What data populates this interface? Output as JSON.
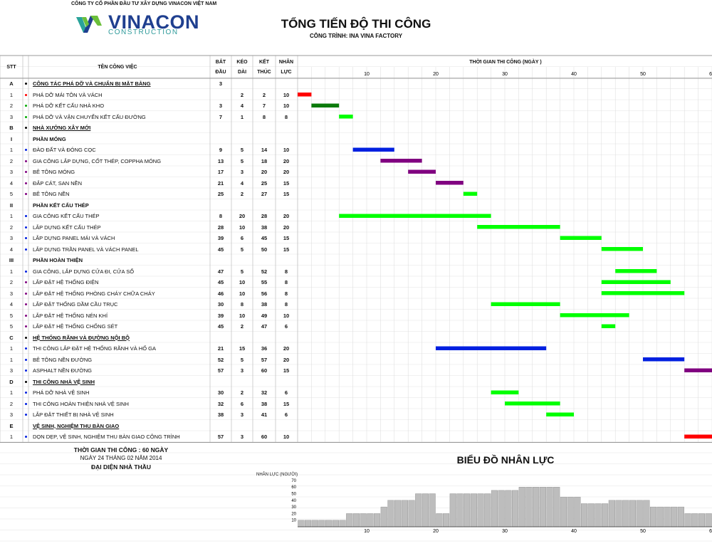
{
  "company": "CÔNG TY CỔ PHẦN ĐẦU TƯ XÂY DỰNG VINACON VIỆT NAM",
  "logo": {
    "name": "VINACON",
    "sub": "CONSTRUCTION"
  },
  "title": "TỔNG TIẾN ĐỘ THI CÔNG",
  "subtitle": "CÔNG TRÌNH: INA VINA FACTORY",
  "headers": {
    "stt": "STT",
    "task": "TÊN CÔNG VIỆC",
    "start": [
      "BẮT",
      "ĐẦU"
    ],
    "duration": [
      "KÉO",
      "DÀI"
    ],
    "end": [
      "KẾT",
      "THÚC"
    ],
    "labor": [
      "NHÂN",
      "LỰC"
    ],
    "timeline": "THỜI GIAN THI CÔNG (NGÀY )"
  },
  "colors": {
    "red": "#ff0000",
    "green": "#00ff00",
    "darkgreen": "#0a7a0a",
    "blue": "#0020e0",
    "purple": "#800080",
    "grid": "#d0d0d0"
  },
  "rows": [
    {
      "stt": "A",
      "kind": "section",
      "bullet": "#000000",
      "name": "CÔNG TÁC PHÁ DỠ VÀ CHUẨN BỊ MẶT BẰNG",
      "start": "3",
      "dur": "",
      "end": "",
      "labor": ""
    },
    {
      "stt": "1",
      "kind": "task",
      "bullet": "#ff0000",
      "name": "PHÁ DỠ MÁI TÔN VÀ VÁCH",
      "start": "",
      "dur": "2",
      "end": "2",
      "labor": "10",
      "bar": {
        "s": 0,
        "e": 2,
        "color": "red"
      }
    },
    {
      "stt": "2",
      "kind": "task",
      "bullet": "#00aa00",
      "name": "PHÁ DỠ KẾT CẤU NHÀ KHO",
      "start": "3",
      "dur": "4",
      "end": "7",
      "labor": "10",
      "bar": {
        "s": 2,
        "e": 6,
        "color": "darkgreen"
      }
    },
    {
      "stt": "3",
      "kind": "task",
      "bullet": "#00aa00",
      "name": "PHÁ DỠ VÀ VẬN CHUYỂN KẾT CẤU ĐƯỜNG",
      "start": "7",
      "dur": "1",
      "end": "8",
      "labor": "8",
      "bar": {
        "s": 6,
        "e": 8,
        "color": "green"
      }
    },
    {
      "stt": "B",
      "kind": "section",
      "bullet": "#000000",
      "name": "NHÀ XƯỞNG XÂY MỚI",
      "start": "",
      "dur": "",
      "end": "",
      "labor": ""
    },
    {
      "stt": "I",
      "kind": "sub",
      "bullet": "",
      "name": "PHẦN MÓNG",
      "start": "",
      "dur": "",
      "end": "",
      "labor": ""
    },
    {
      "stt": "1",
      "kind": "task",
      "bullet": "#0020e0",
      "name": "ĐÀO ĐẤT VÀ ĐÓNG CỌC",
      "start": "9",
      "dur": "5",
      "end": "14",
      "labor": "10",
      "bar": {
        "s": 8,
        "e": 14,
        "color": "blue"
      }
    },
    {
      "stt": "2",
      "kind": "task",
      "bullet": "#800080",
      "name": "GIA CÔNG LẮP DỰNG, CỐT THÉP, COPPHA MÓNG",
      "start": "13",
      "dur": "5",
      "end": "18",
      "labor": "20",
      "bar": {
        "s": 12,
        "e": 18,
        "color": "purple"
      }
    },
    {
      "stt": "3",
      "kind": "task",
      "bullet": "#800080",
      "name": "BÊ TÔNG MÓNG",
      "start": "17",
      "dur": "3",
      "end": "20",
      "labor": "20",
      "bar": {
        "s": 16,
        "e": 20,
        "color": "purple"
      }
    },
    {
      "stt": "4",
      "kind": "task",
      "bullet": "#800080",
      "name": "ĐẮP CÁT, SAN NỀN",
      "start": "21",
      "dur": "4",
      "end": "25",
      "labor": "15",
      "bar": {
        "s": 20,
        "e": 24,
        "color": "purple"
      }
    },
    {
      "stt": "5",
      "kind": "task",
      "bullet": "#800080",
      "name": "BÊ TÔNG NỀN",
      "start": "25",
      "dur": "2",
      "end": "27",
      "labor": "15",
      "bar": {
        "s": 24,
        "e": 26,
        "color": "green"
      }
    },
    {
      "stt": "II",
      "kind": "sub",
      "bullet": "",
      "name": "PHẦN KẾT CẤU THÉP",
      "start": "",
      "dur": "",
      "end": "",
      "labor": ""
    },
    {
      "stt": "1",
      "kind": "task",
      "bullet": "#0020e0",
      "name": "GIA CÔNG KẾT CẤU THÉP",
      "start": "8",
      "dur": "20",
      "end": "28",
      "labor": "20",
      "bar": {
        "s": 6,
        "e": 28,
        "color": "green"
      }
    },
    {
      "stt": "2",
      "kind": "task",
      "bullet": "#0020e0",
      "name": "LẮP DỰNG KẾT CẤU THÉP",
      "start": "28",
      "dur": "10",
      "end": "38",
      "labor": "20",
      "bar": {
        "s": 26,
        "e": 38,
        "color": "green"
      }
    },
    {
      "stt": "3",
      "kind": "task",
      "bullet": "#0020e0",
      "name": "LẮP DỰNG PANEL MÁI VÀ VÁCH",
      "start": "39",
      "dur": "6",
      "end": "45",
      "labor": "15",
      "bar": {
        "s": 38,
        "e": 44,
        "color": "green"
      }
    },
    {
      "stt": "4",
      "kind": "task",
      "bullet": "#0020e0",
      "name": "LẮP DỰNG TRẦN PANEL VÀ VÁCH PANEL",
      "start": "45",
      "dur": "5",
      "end": "50",
      "labor": "15",
      "bar": {
        "s": 44,
        "e": 50,
        "color": "green"
      }
    },
    {
      "stt": "III",
      "kind": "sub",
      "bullet": "",
      "name": "PHẦN HOÀN THIỆN",
      "start": "",
      "dur": "",
      "end": "",
      "labor": ""
    },
    {
      "stt": "1",
      "kind": "task",
      "bullet": "#0020e0",
      "name": "GIA CÔNG, LẮP DỰNG CỬA ĐI, CỬA SỔ",
      "start": "47",
      "dur": "5",
      "end": "52",
      "labor": "8",
      "bar": {
        "s": 46,
        "e": 52,
        "color": "green"
      }
    },
    {
      "stt": "2",
      "kind": "task",
      "bullet": "#800080",
      "name": "LẮP ĐẶT HỆ THỐNG ĐIỆN",
      "start": "45",
      "dur": "10",
      "end": "55",
      "labor": "8",
      "bar": {
        "s": 44,
        "e": 54,
        "color": "green"
      }
    },
    {
      "stt": "3",
      "kind": "task",
      "bullet": "#800080",
      "name": "LẮP ĐẶT HỆ THỐNG PHÒNG CHÁY CHỮA CHÁY",
      "start": "46",
      "dur": "10",
      "end": "56",
      "labor": "8",
      "bar": {
        "s": 44,
        "e": 56,
        "color": "green"
      }
    },
    {
      "stt": "4",
      "kind": "task",
      "bullet": "#800080",
      "name": "LẮP ĐẶT THỐNG DẦM CẦU TRỤC",
      "start": "30",
      "dur": "8",
      "end": "38",
      "labor": "8",
      "bar": {
        "s": 28,
        "e": 38,
        "color": "green"
      }
    },
    {
      "stt": "5",
      "kind": "task",
      "bullet": "#800080",
      "name": "LẮP ĐẶT HỆ THỐNG NÉN KHÍ",
      "start": "39",
      "dur": "10",
      "end": "49",
      "labor": "10",
      "bar": {
        "s": 38,
        "e": 48,
        "color": "green"
      }
    },
    {
      "stt": "5",
      "kind": "task",
      "bullet": "#800080",
      "name": "LẮP ĐẶT HỆ THỐNG CHỐNG SÉT",
      "start": "45",
      "dur": "2",
      "end": "47",
      "labor": "6",
      "bar": {
        "s": 44,
        "e": 46,
        "color": "green"
      }
    },
    {
      "stt": "C",
      "kind": "section",
      "bullet": "#000000",
      "name": "HỆ THỐNG RÃNH VÀ ĐƯỜNG NỘI BỘ",
      "start": "",
      "dur": "",
      "end": "",
      "labor": ""
    },
    {
      "stt": "1",
      "kind": "task",
      "bullet": "#0020e0",
      "name": "THI CÔNG LẮP ĐẶT HỆ THỐNG RÃNH VÀ HỐ GA",
      "start": "21",
      "dur": "15",
      "end": "36",
      "labor": "20",
      "bar": {
        "s": 20,
        "e": 36,
        "color": "blue"
      }
    },
    {
      "stt": "1",
      "kind": "task",
      "bullet": "#0020e0",
      "name": "BÊ TÔNG NỀN ĐƯỜNG",
      "start": "52",
      "dur": "5",
      "end": "57",
      "labor": "20",
      "bar": {
        "s": 50,
        "e": 56,
        "color": "blue"
      }
    },
    {
      "stt": "3",
      "kind": "task",
      "bullet": "#0020e0",
      "name": "ASPHALT NỀN ĐƯỜNG",
      "start": "57",
      "dur": "3",
      "end": "60",
      "labor": "15",
      "bar": {
        "s": 56,
        "e": 60,
        "color": "purple"
      }
    },
    {
      "stt": "D",
      "kind": "section",
      "bullet": "#000000",
      "name": "THI CÔNG NHÀ VỆ SINH",
      "start": "",
      "dur": "",
      "end": "",
      "labor": ""
    },
    {
      "stt": "1",
      "kind": "task",
      "bullet": "#0020e0",
      "name": "PHÁ DỠ NHÀ VỆ SINH",
      "start": "30",
      "dur": "2",
      "end": "32",
      "labor": "6",
      "bar": {
        "s": 28,
        "e": 32,
        "color": "green"
      }
    },
    {
      "stt": "2",
      "kind": "task",
      "bullet": "#0020e0",
      "name": "THI CÔNG HOÀN THIỆN NHÀ VỆ SINH",
      "start": "32",
      "dur": "6",
      "end": "38",
      "labor": "15",
      "bar": {
        "s": 30,
        "e": 38,
        "color": "green"
      }
    },
    {
      "stt": "3",
      "kind": "task",
      "bullet": "#0020e0",
      "name": "LẮP ĐẶT THIẾT BỊ NHÀ VỆ SINH",
      "start": "38",
      "dur": "3",
      "end": "41",
      "labor": "6",
      "bar": {
        "s": 36,
        "e": 40,
        "color": "green"
      }
    },
    {
      "stt": "E",
      "kind": "section",
      "bullet": "",
      "name": "VỆ SINH, NGHIỆM THU BÀN GIAO",
      "start": "",
      "dur": "",
      "end": "",
      "labor": ""
    },
    {
      "stt": "1",
      "kind": "task",
      "bullet": "#0020e0",
      "name": "DỌN DẸP, VỆ SINH, NGHIỆM THU BÀN GIAO CÔNG TRÌNH",
      "start": "57",
      "dur": "3",
      "end": "60",
      "labor": "10",
      "bar": {
        "s": 56,
        "e": 60,
        "color": "red"
      }
    }
  ],
  "chart_data": [
    {
      "type": "gantt",
      "title": "THỜI GIAN THI CÔNG (NGÀY )",
      "x_ticks": [
        10,
        20,
        30,
        40,
        50,
        60
      ],
      "xlim": [
        0,
        60
      ]
    },
    {
      "type": "bar",
      "title": "BIỂU ĐỒ NHÂN LỰC",
      "ylabel": "NHÂN LỰC (NGƯỜI)",
      "y_ticks": [
        10,
        20,
        30,
        40,
        50,
        60,
        70
      ],
      "x_ticks": [
        10,
        20,
        30,
        40,
        50,
        60
      ],
      "xlim": [
        0,
        60
      ],
      "ylim": [
        0,
        70
      ],
      "x": [
        1,
        2,
        3,
        4,
        5,
        6,
        7,
        8,
        9,
        10,
        11,
        12,
        13,
        14,
        15,
        16,
        17,
        18,
        19,
        20,
        21,
        22,
        23,
        24,
        25,
        26,
        27,
        28,
        29,
        30,
        31,
        32,
        33,
        34,
        35,
        36,
        37,
        38,
        39,
        40,
        41,
        42,
        43,
        44,
        45,
        46,
        47,
        48,
        49,
        50,
        51,
        52,
        53,
        54,
        55,
        56,
        57,
        58,
        59,
        60
      ],
      "values": [
        10,
        10,
        10,
        10,
        10,
        10,
        10,
        20,
        20,
        20,
        20,
        20,
        30,
        40,
        40,
        40,
        40,
        50,
        50,
        50,
        20,
        20,
        50,
        50,
        50,
        50,
        50,
        50,
        55,
        55,
        55,
        55,
        60,
        60,
        60,
        60,
        60,
        60,
        45,
        45,
        45,
        35,
        35,
        35,
        35,
        40,
        40,
        40,
        40,
        40,
        40,
        30,
        30,
        30,
        30,
        30,
        20,
        20,
        20,
        20
      ]
    }
  ],
  "footer": {
    "line1": "THỜI GIAN THI CÔNG : 60  NGÀY",
    "line2": "NGÀY 24  THÁNG 02 NĂM 2014",
    "line3": "ĐẠI DIỆN NHÀ THẦU"
  }
}
